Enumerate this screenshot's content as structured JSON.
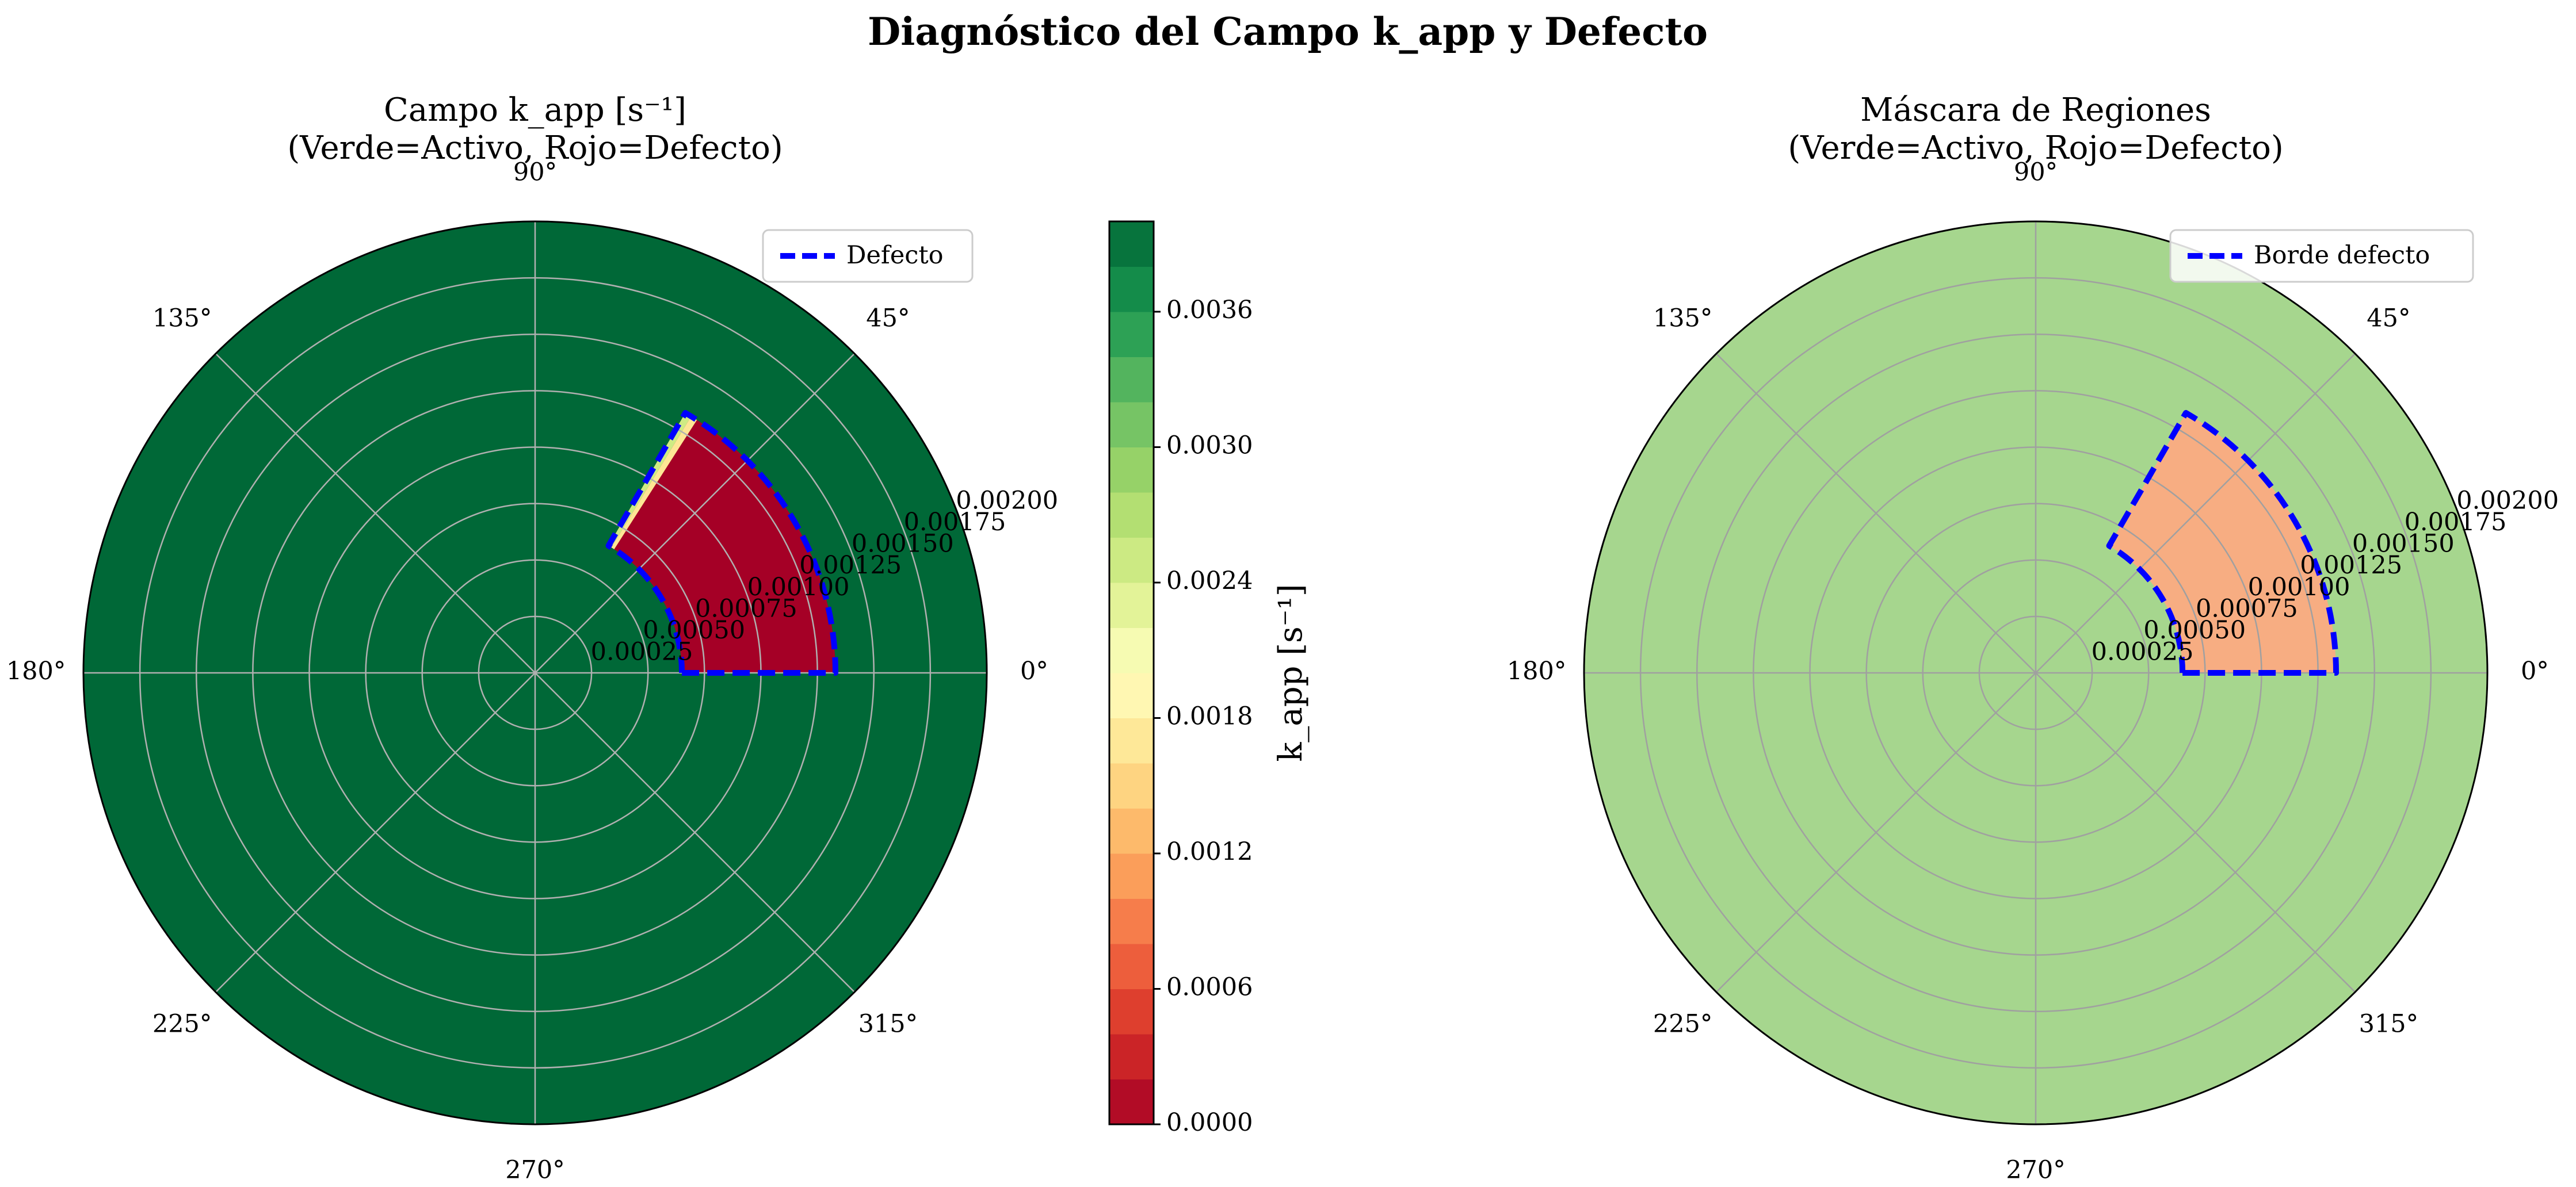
{
  "figure_title": "Diagnóstico del Campo k_app y Defecto",
  "chart_data": [
    {
      "type": "heatmap",
      "projection": "polar",
      "title": "Campo k_app [s⁻¹]\n(Verde=Activo, Rojo=Defecto)",
      "title_line1": "Campo k_app [s⁻¹]",
      "title_line2": "(Verde=Activo, Rojo=Defecto)",
      "theta_ticks_deg": [
        0,
        45,
        90,
        135,
        180,
        225,
        270,
        315
      ],
      "theta_tick_labels": [
        "0°",
        "45°",
        "90°",
        "135°",
        "180°",
        "225°",
        "270°",
        "315°"
      ],
      "r_ticks": [
        0.00025,
        0.0005,
        0.00075,
        0.001,
        0.00125,
        0.0015,
        0.00175,
        0.002
      ],
      "r_tick_labels": [
        "0.00025",
        "0.00050",
        "0.00075",
        "0.00100",
        "0.00125",
        "0.00150",
        "0.00175",
        "0.00200"
      ],
      "rlim": [
        0,
        0.002
      ],
      "grid": true,
      "background_value": 0.004,
      "defect_region": {
        "r_min": 0.00065,
        "r_max": 0.00133,
        "theta_min_deg": 0,
        "theta_max_deg": 60,
        "value": 0.0
      },
      "defect_boundary": {
        "r": [
          0.00065,
          0.00133,
          0.00133,
          0.00065,
          0.00065
        ],
        "theta_deg": [
          0,
          0,
          60,
          60,
          0
        ],
        "name": "Defecto",
        "style": "dashed",
        "color": "#0000ff"
      },
      "legend": {
        "entries": [
          "Defecto"
        ],
        "location": "upper right"
      },
      "colorbar": {
        "label": "k_app [s⁻¹]",
        "vmin": 0.0,
        "vmax": 0.004,
        "ticks": [
          0.0,
          0.0006,
          0.0012,
          0.0018,
          0.0024,
          0.003,
          0.0036
        ],
        "tick_labels": [
          "0.0000",
          "0.0006",
          "0.0012",
          "0.0018",
          "0.0024",
          "0.0030",
          "0.0036"
        ],
        "colormap": "RdYlGn",
        "levels": 20
      }
    },
    {
      "type": "heatmap",
      "projection": "polar",
      "title": "Máscara de Regiones\n(Verde=Activo, Rojo=Defecto)",
      "title_line1": "Máscara de Regiones",
      "title_line2": "(Verde=Activo, Rojo=Defecto)",
      "theta_ticks_deg": [
        0,
        45,
        90,
        135,
        180,
        225,
        270,
        315
      ],
      "theta_tick_labels": [
        "0°",
        "45°",
        "90°",
        "135°",
        "180°",
        "225°",
        "270°",
        "315°"
      ],
      "r_ticks": [
        0.00025,
        0.0005,
        0.00075,
        0.001,
        0.00125,
        0.0015,
        0.00175,
        0.002
      ],
      "r_tick_labels": [
        "0.00025",
        "0.00050",
        "0.00075",
        "0.00100",
        "0.00125",
        "0.00150",
        "0.00175",
        "0.00200"
      ],
      "rlim": [
        0,
        0.002
      ],
      "grid": true,
      "region_colors": {
        "active": "#a6d68e",
        "defect": "#f7ad82"
      },
      "defect_region": {
        "r_min": 0.00065,
        "r_max": 0.00133,
        "theta_min_deg": 0,
        "theta_max_deg": 60
      },
      "defect_boundary": {
        "r": [
          0.00065,
          0.00133,
          0.00133,
          0.00065,
          0.00065
        ],
        "theta_deg": [
          0,
          0,
          60,
          60,
          0
        ],
        "name": "Borde defecto",
        "style": "dashed",
        "color": "#0000ff"
      },
      "legend": {
        "entries": [
          "Borde defecto"
        ],
        "location": "upper right"
      }
    }
  ]
}
